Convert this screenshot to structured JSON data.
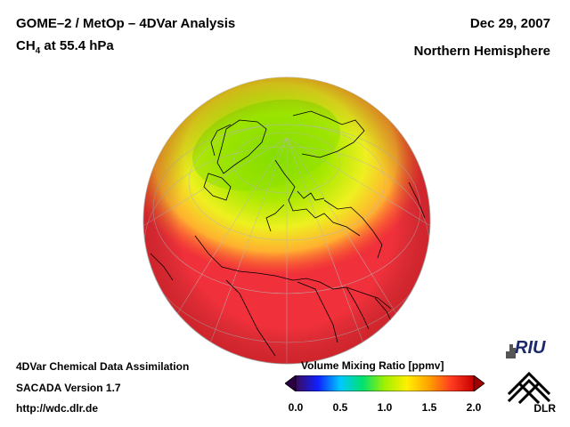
{
  "header": {
    "title_line1": "GOME–2 / MetOp – 4DVar Analysis",
    "species_main": "CH",
    "species_sub": "4",
    "species_rest": " at 55.4 hPa",
    "date": "Dec 29, 2007",
    "region": "Northern Hemisphere"
  },
  "footer": {
    "line1": "4DVar Chemical Data Assimilation",
    "line2": "SACADA Version 1.7",
    "line3": "http://wdc.dlr.de"
  },
  "colorbar": {
    "label": "Volume Mixing Ratio [ppmv]",
    "ticks": [
      "0.0",
      "0.5",
      "1.0",
      "1.5",
      "2.0"
    ],
    "stops": [
      "#3a0a5a",
      "#1020ff",
      "#00c8ff",
      "#00e070",
      "#a0f000",
      "#fff000",
      "#ffa000",
      "#ff3a20",
      "#c80000"
    ]
  },
  "map": {
    "colors": {
      "background": "#f0303a",
      "polar_high": "#90e000",
      "polar_mid": "#e8ee20",
      "polar_outer": "#ffb030",
      "coast": "#000000",
      "grid": "#b0b0b0"
    }
  },
  "logos": {
    "riu": "RIU",
    "dlr": "DLR"
  }
}
